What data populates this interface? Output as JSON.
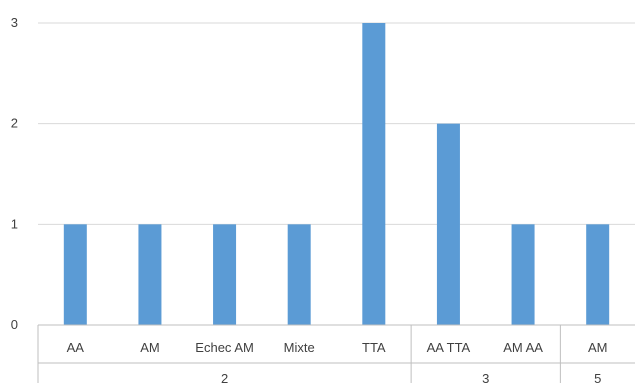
{
  "chart_data": {
    "type": "bar",
    "categories": [
      "AA",
      "AM",
      "Echec AM",
      "Mixte",
      "TTA",
      "AA TTA",
      "AM AA",
      "AM"
    ],
    "groups": [
      {
        "label": "2",
        "count": 5
      },
      {
        "label": "3",
        "count": 2
      },
      {
        "label": "5",
        "count": 1
      }
    ],
    "values": [
      1,
      1,
      1,
      1,
      3,
      2,
      1,
      1
    ],
    "ylim": [
      0,
      3
    ],
    "yticks": [
      0,
      1,
      2,
      3
    ],
    "grid": true,
    "legend": "none",
    "title": "",
    "xlabel": "",
    "ylabel": "",
    "colors": {
      "bar": "#5b9bd5",
      "grid": "#d9d9d9",
      "axis": "#bfbfbf",
      "text": "#404040"
    }
  }
}
